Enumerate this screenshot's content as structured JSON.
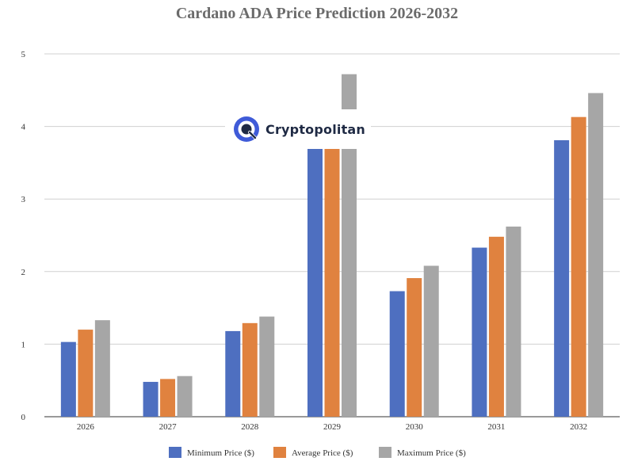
{
  "chart_data": {
    "type": "bar",
    "title": "Cardano ADA Price Prediction 2026-2032",
    "categories": [
      "2026",
      "2027",
      "2028",
      "2029",
      "2030",
      "2031",
      "2032"
    ],
    "series": [
      {
        "name": "Minimum Price ($)",
        "color": "#4e6fc0",
        "values": [
          1.03,
          0.48,
          1.18,
          3.7,
          1.73,
          2.33,
          3.81
        ]
      },
      {
        "name": "Average Price ($)",
        "color": "#e0823f",
        "values": [
          1.2,
          0.52,
          1.29,
          3.7,
          1.91,
          2.48,
          4.13
        ]
      },
      {
        "name": "Maximum Price ($)",
        "color": "#a6a6a6",
        "values": [
          1.33,
          0.56,
          1.38,
          4.72,
          2.08,
          2.62,
          4.46
        ]
      }
    ],
    "yticks": [
      "0",
      "1",
      "2",
      "3",
      "4",
      "5"
    ],
    "ylim": [
      0,
      5
    ],
    "xlabel": "",
    "ylabel": "",
    "grid": true,
    "legend_position": "bottom"
  },
  "watermark": {
    "text": "Cryptopolitan",
    "icon": "cryptopolitan-logo-icon"
  }
}
